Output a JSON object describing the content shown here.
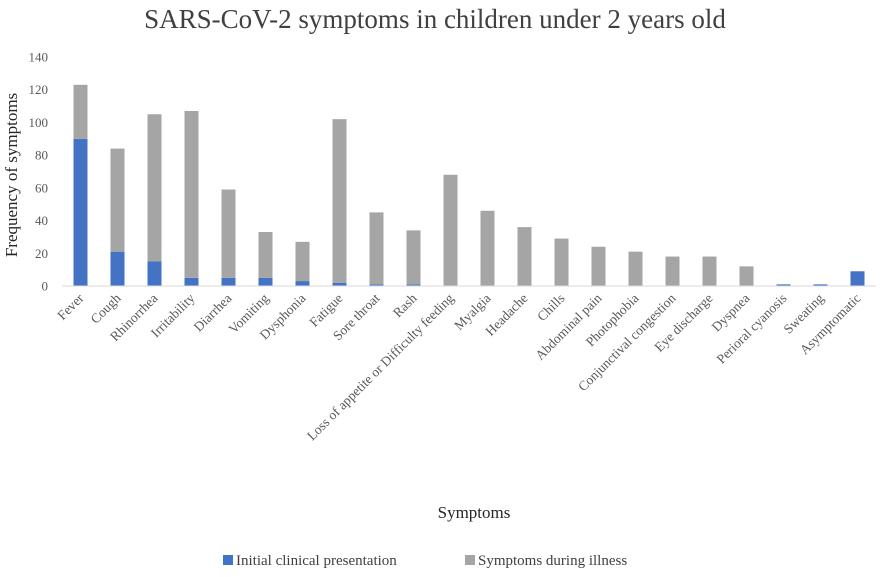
{
  "chart_data": {
    "type": "bar",
    "stacked": true,
    "title": "SARS-CoV-2 symptoms in children under 2 years old",
    "xlabel": "Symptoms",
    "ylabel": "Frequency of symptoms",
    "ylim": [
      0,
      140
    ],
    "yticks": [
      0,
      20,
      40,
      60,
      80,
      100,
      120,
      140
    ],
    "grid": false,
    "legend_position": "bottom",
    "categories": [
      "Fever",
      "Cough",
      "Rhinorrhea",
      "Irritability",
      "Diarrhea",
      "Vomiting",
      "Dysphonia",
      "Fatigue",
      "Sore throat",
      "Rash",
      "Loss of appetite or Difficulty feeding",
      "Myalgia",
      "Headache",
      "Chills",
      "Abdominal pain",
      "Photophobia",
      "Conjunctival congestion",
      "Eye discharge",
      "Dyspnea",
      "Perioral cyanosis",
      "Sweating",
      "Asymptomatic"
    ],
    "series": [
      {
        "name": "Initial clinical presentation",
        "color": "#4472C4",
        "values": [
          90,
          21,
          15,
          5,
          5,
          5,
          3,
          2,
          1,
          1,
          0,
          0,
          0,
          0,
          0,
          0,
          0,
          0,
          0,
          1,
          1,
          9
        ]
      },
      {
        "name": "Symptoms during illness",
        "color": "#A5A5A5",
        "values": [
          33,
          63,
          90,
          102,
          54,
          28,
          24,
          100,
          44,
          33,
          68,
          46,
          36,
          29,
          24,
          21,
          18,
          18,
          12,
          0,
          0,
          0
        ]
      }
    ]
  }
}
